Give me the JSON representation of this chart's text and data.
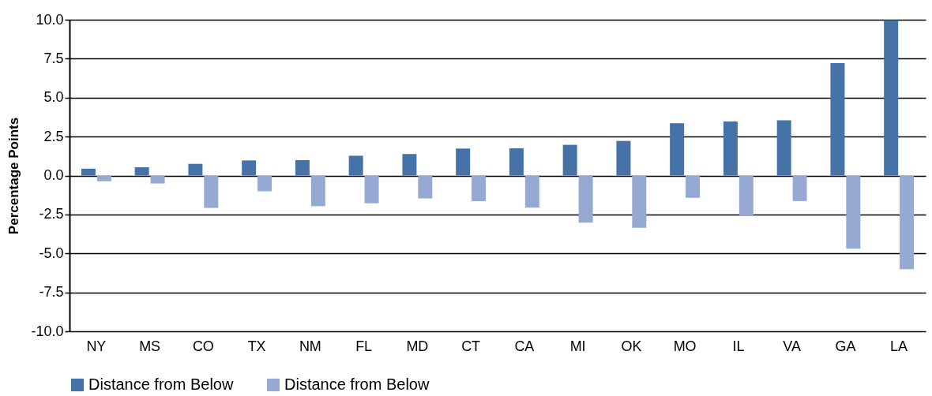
{
  "chart_data": {
    "type": "bar",
    "ylabel": "Percentage Points",
    "categories": [
      "NY",
      "MS",
      "CO",
      "TX",
      "NM",
      "FL",
      "MD",
      "CT",
      "CA",
      "MI",
      "OK",
      "MO",
      "IL",
      "VA",
      "GA",
      "LA"
    ],
    "series": [
      {
        "name": "Distance from Below",
        "color": "#4673a7",
        "values": [
          0.44,
          0.53,
          0.75,
          0.97,
          0.99,
          1.27,
          1.38,
          1.73,
          1.75,
          1.97,
          2.22,
          3.35,
          3.47,
          3.55,
          7.21,
          9.98
        ]
      },
      {
        "name": "Distance from Below",
        "color": "#95a9d2",
        "values": [
          -0.37,
          -0.51,
          -2.08,
          -1.01,
          -1.97,
          -1.78,
          -1.47,
          -1.64,
          -2.06,
          -3.03,
          -3.35,
          -1.43,
          -2.6,
          -1.64,
          -4.69,
          -6.01
        ]
      }
    ],
    "ylim": [
      -10,
      10
    ],
    "yticks": [
      {
        "value": -10,
        "label": "-10.0"
      },
      {
        "value": -7.5,
        "label": "-7.5"
      },
      {
        "value": -5,
        "label": "-5.0"
      },
      {
        "value": -2.5,
        "label": "-2.5"
      },
      {
        "value": 0,
        "label": "0.0"
      },
      {
        "value": 2.5,
        "label": "2.5"
      },
      {
        "value": 5,
        "label": "5.0"
      },
      {
        "value": 7.5,
        "label": "7.5"
      },
      {
        "value": 10,
        "label": "10.0"
      }
    ],
    "grid": "y",
    "legend": "bottom"
  }
}
